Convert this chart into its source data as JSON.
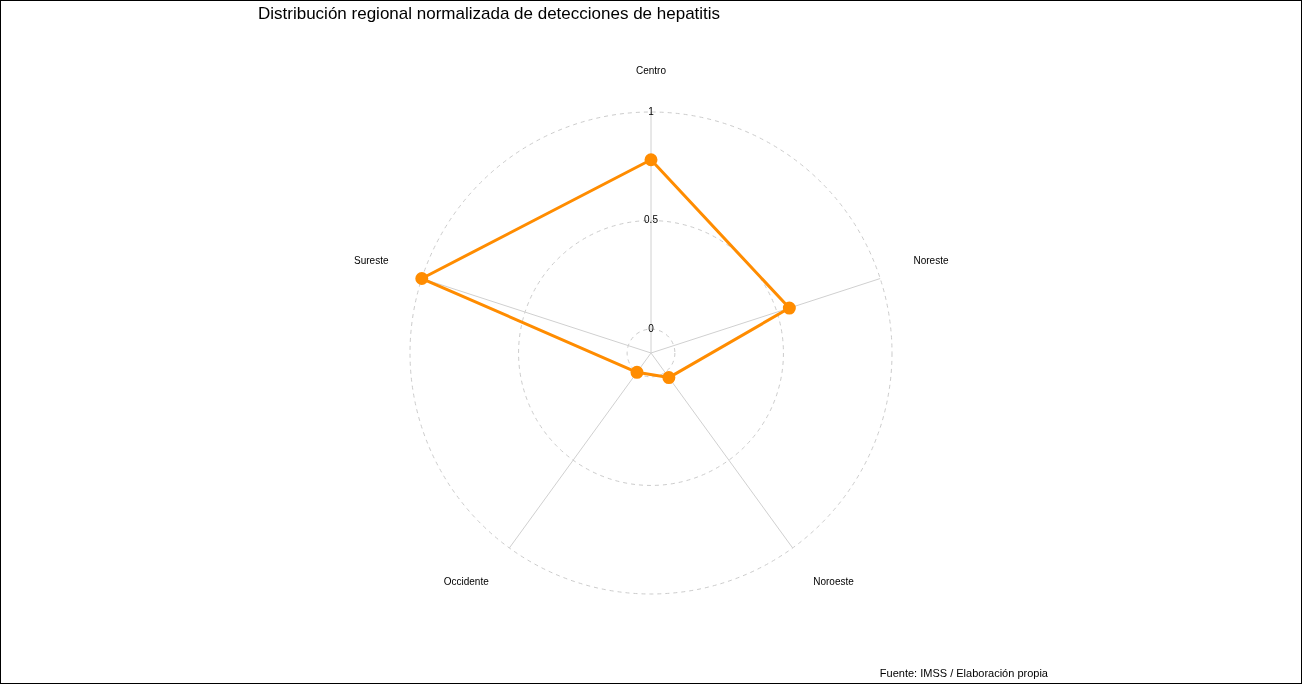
{
  "chart_data": {
    "type": "radar",
    "title": "Distribución regional normalizada de detecciones de hepatitis",
    "categories": [
      "Centro",
      "Noreste",
      "Noroeste",
      "Occidente",
      "Sureste"
    ],
    "series": [
      {
        "color": "#ff8c00",
        "values": [
          0.78,
          0.56,
          0.03,
          0.0,
          1.0
        ]
      }
    ],
    "ylim": [
      -0.11,
      1
    ],
    "yticks": [
      0,
      0.5,
      1
    ],
    "grid": true,
    "legend": false,
    "marker": "circle",
    "line_style": "solid",
    "annotations": [
      "Fuente: IMSS / Elaboración propia"
    ]
  }
}
